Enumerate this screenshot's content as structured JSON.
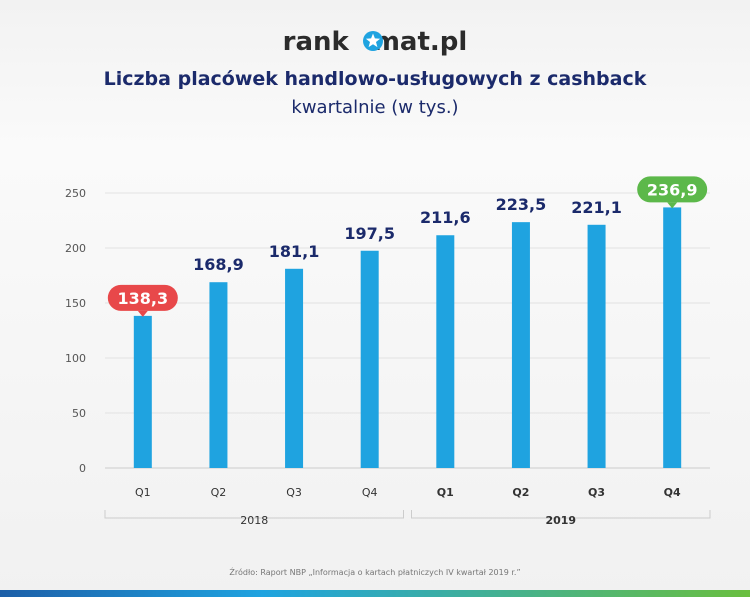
{
  "logo": {
    "text_before": "rank",
    "text_after": "mat.pl"
  },
  "chart_data": {
    "type": "bar",
    "title": "Liczba placówek handlowo-usługowych z cashback",
    "subtitle": "kwartalnie (w tys.)",
    "categories": [
      "Q1",
      "Q2",
      "Q3",
      "Q4",
      "Q1",
      "Q2",
      "Q3",
      "Q4"
    ],
    "groups": [
      {
        "label": "2018",
        "span": 4
      },
      {
        "label": "2019",
        "span": 4
      }
    ],
    "values": [
      138.3,
      168.9,
      181.1,
      197.5,
      211.6,
      223.5,
      221.1,
      236.9
    ],
    "data_labels": [
      "138,3",
      "168,9",
      "181,1",
      "197,5",
      "211,6",
      "223,5",
      "221,1",
      "236,9"
    ],
    "highlight": {
      "min_index": 0,
      "max_index": 7
    },
    "yticks": [
      0,
      50,
      100,
      150,
      200,
      250
    ],
    "ylim": [
      0,
      250
    ],
    "grid": true,
    "xlabel": "",
    "ylabel": "",
    "source": "Źródło: Raport NBP „Informacja o kartach płatniczych IV kwartał 2019 r.”"
  },
  "colors": {
    "bar": "#1fa3e0",
    "min": "#e8484a",
    "max": "#5cb84a",
    "title": "#1b2a6b",
    "label": "#1b2a6b"
  }
}
